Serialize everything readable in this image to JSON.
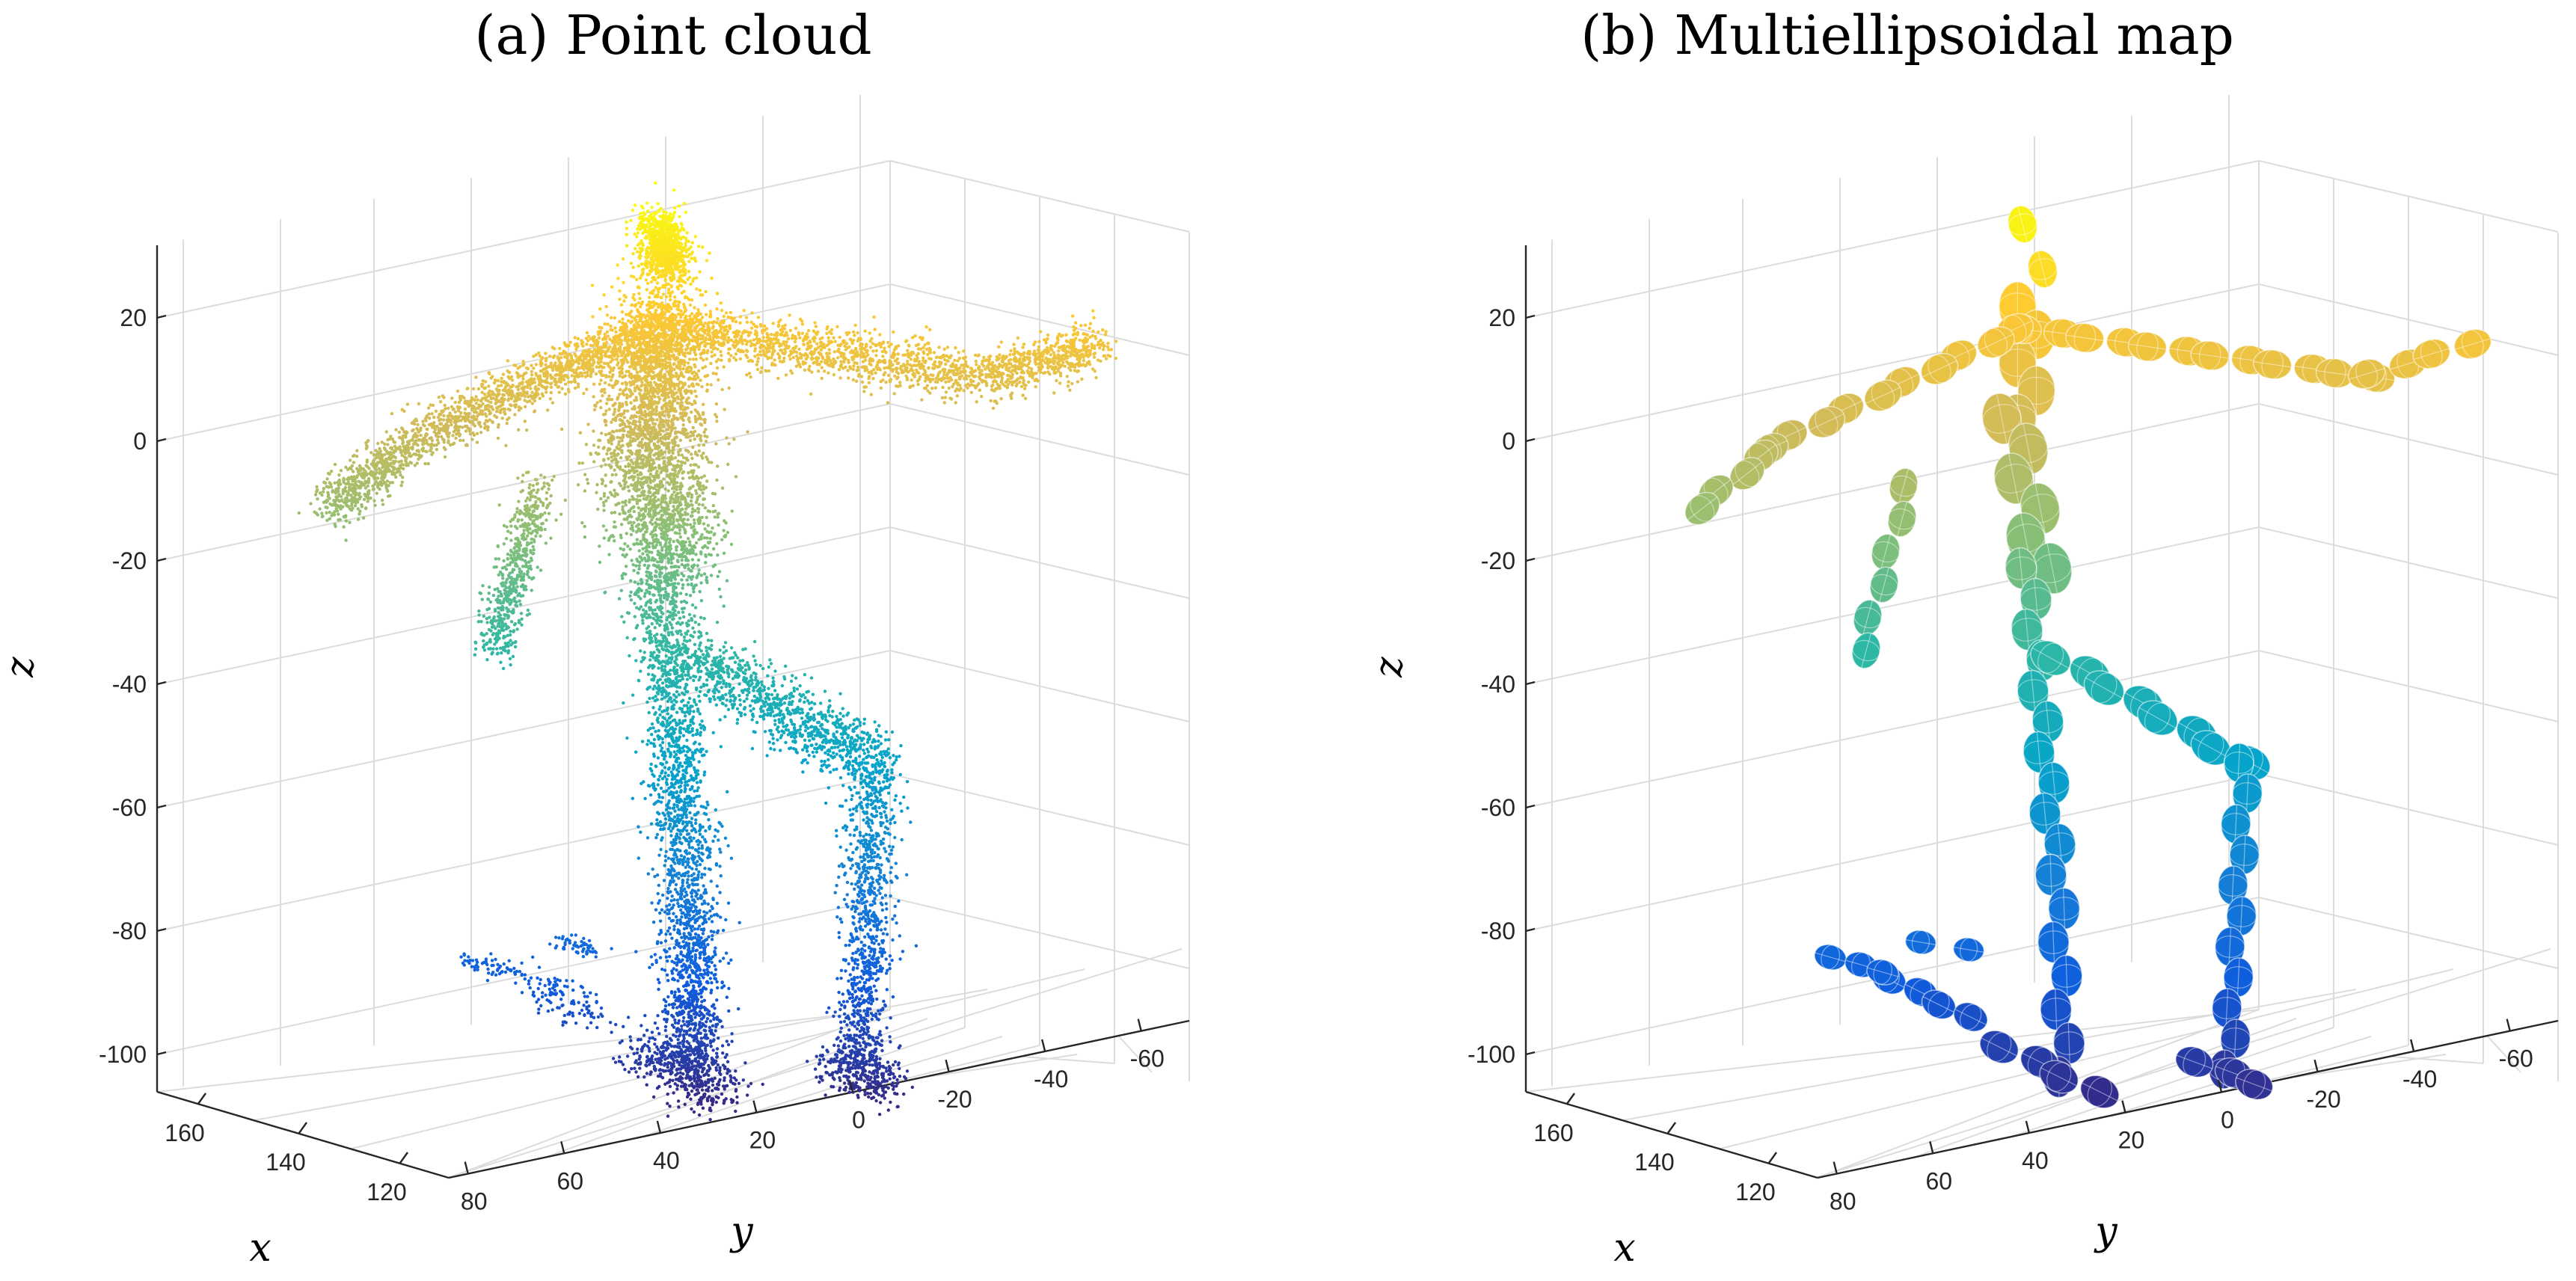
{
  "chart_data": [
    {
      "type": "scatter3d",
      "title": "(a) Point cloud",
      "xlabel": "x",
      "ylabel": "y",
      "zlabel": "z",
      "xticks": [
        "120",
        "140",
        "160"
      ],
      "yticks": [
        "80",
        "60",
        "40",
        "20",
        "0",
        "-20",
        "-40",
        "-60"
      ],
      "zticks": [
        "20",
        "0",
        "-20",
        "-40",
        "-60",
        "-80",
        "-100"
      ],
      "xlim": [
        110,
        180
      ],
      "ylim": [
        -70,
        90
      ],
      "zlim": [
        -110,
        30
      ],
      "grid": true,
      "colormap": [
        "#352a87",
        "#0f5cdd",
        "#1481d6",
        "#06a4ca",
        "#2eb7a4",
        "#87bf77",
        "#d1bb59",
        "#fec832",
        "#f9fb0e"
      ]
    },
    {
      "type": "ellipsoids3d",
      "title": "(b) Multiellipsoidal map",
      "xlabel": "x",
      "ylabel": "y",
      "zlabel": "z",
      "xticks": [
        "120",
        "140",
        "160"
      ],
      "yticks": [
        "80",
        "60",
        "40",
        "20",
        "0",
        "-20",
        "-40",
        "-60"
      ],
      "zticks": [
        "20",
        "0",
        "-20",
        "-40",
        "-60",
        "-80",
        "-100"
      ],
      "xlim": [
        110,
        180
      ],
      "ylim": [
        -70,
        90
      ],
      "zlim": [
        -110,
        30
      ],
      "grid": true,
      "colormap": [
        "#352a87",
        "#0f5cdd",
        "#1481d6",
        "#06a4ca",
        "#2eb7a4",
        "#87bf77",
        "#d1bb59",
        "#fec832",
        "#f9fb0e"
      ]
    }
  ]
}
